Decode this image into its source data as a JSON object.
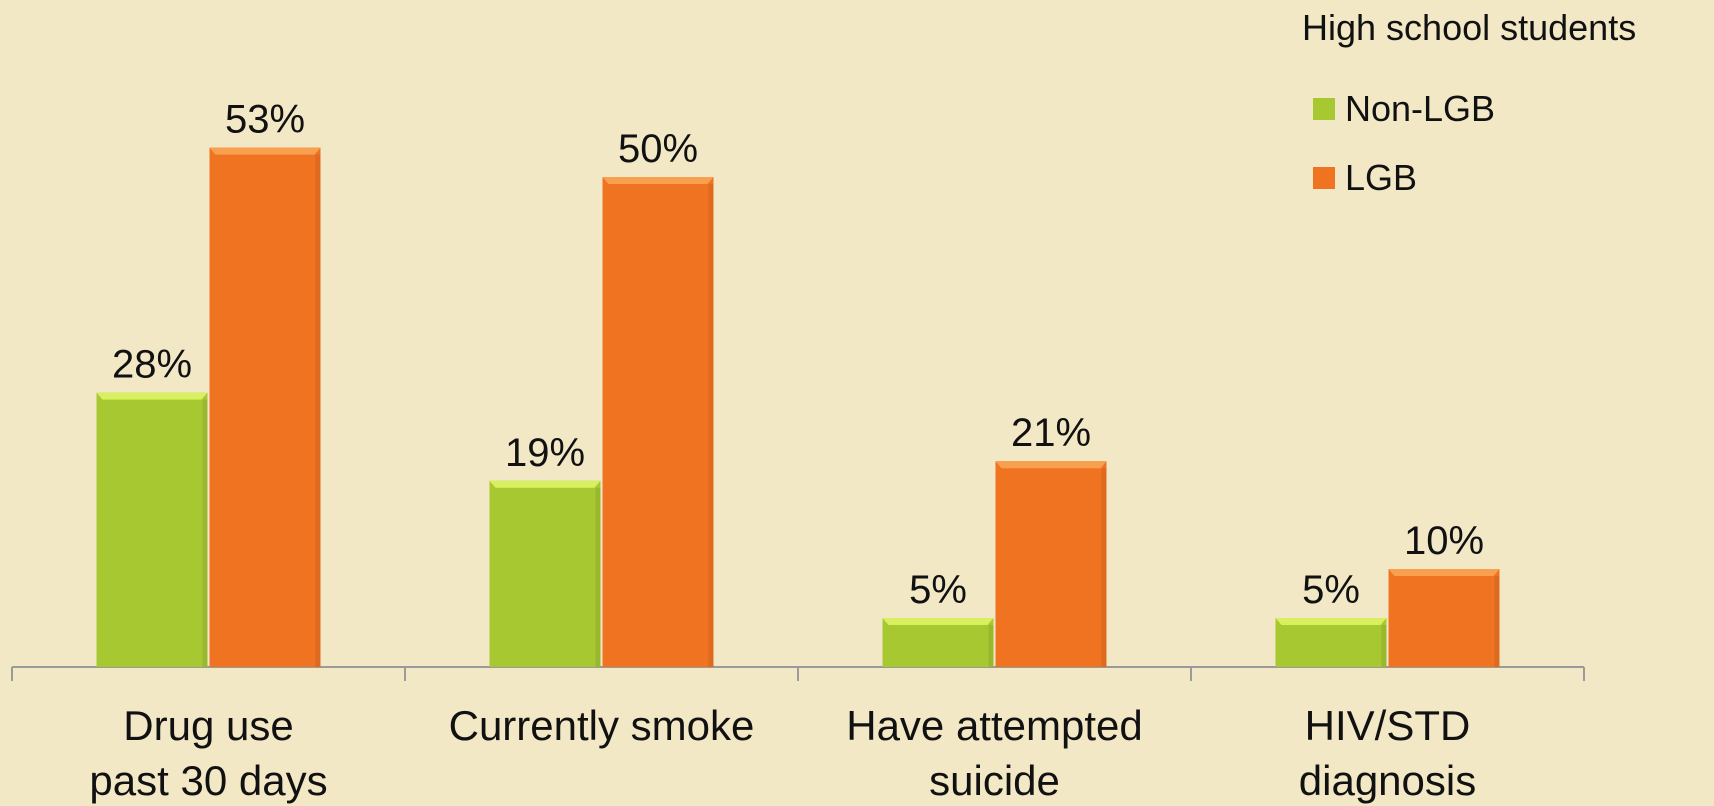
{
  "chart_data": {
    "type": "bar",
    "categories": [
      [
        "Drug use",
        "past 30 days"
      ],
      [
        "Currently smoke"
      ],
      [
        "Have attempted",
        "suicide"
      ],
      [
        "HIV/STD",
        "diagnosis"
      ]
    ],
    "series": [
      {
        "name": "Non-LGB",
        "values": [
          28,
          19,
          5,
          5
        ],
        "labels": [
          "28%",
          "19%",
          "5%",
          "5%"
        ],
        "color": "#a8c832",
        "top_color": "#d8f060"
      },
      {
        "name": "LGB",
        "values": [
          53,
          50,
          21,
          10
        ],
        "labels": [
          "53%",
          "50%",
          "21%",
          "10%"
        ],
        "color": "#f07322",
        "top_color": "#f8a050"
      }
    ],
    "legend": {
      "title": "High school students",
      "position": "top-right"
    },
    "ylim": [
      0,
      57
    ],
    "grid": false,
    "background": "#f2e8c6",
    "axis_color": "#9a9a9a"
  }
}
